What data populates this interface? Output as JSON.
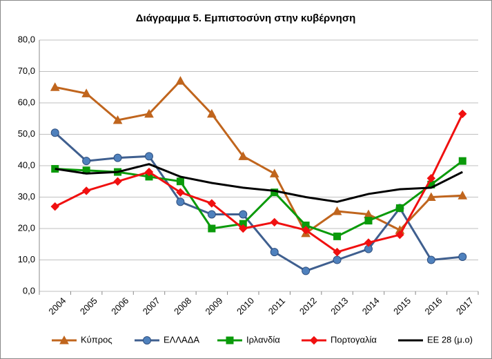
{
  "chart_data": {
    "type": "line",
    "title": "Διάγραμμα 5. Εμπιστοσύνη στην κυβέρνηση",
    "categories": [
      "2004",
      "2005",
      "2006",
      "2007",
      "2008",
      "2009",
      "2010",
      "2011",
      "2012",
      "2013",
      "2014",
      "2015",
      "2016",
      "2017"
    ],
    "series": [
      {
        "name": "Κύπρος",
        "color": "#c0651d",
        "marker": "triangle",
        "values": [
          65.0,
          63.0,
          54.5,
          56.5,
          67.0,
          56.5,
          43.0,
          37.5,
          18.5,
          25.5,
          24.5,
          19.5,
          30.0,
          30.5
        ]
      },
      {
        "name": "ΕΛΛΑΔΑ",
        "color": "#3f5f8f",
        "marker": "circle",
        "marker_color": "#4f81bd",
        "values": [
          50.5,
          41.5,
          42.5,
          43.0,
          28.5,
          24.5,
          24.5,
          12.5,
          6.5,
          10.0,
          13.5,
          26.5,
          10.0,
          11.0
        ]
      },
      {
        "name": "Ιρλανδία",
        "color": "#0a9a0a",
        "marker": "square",
        "values": [
          39.0,
          38.5,
          38.0,
          36.5,
          35.0,
          20.0,
          21.5,
          31.5,
          21.0,
          17.5,
          22.5,
          26.5,
          34.0,
          41.5
        ]
      },
      {
        "name": "Πορτογαλία",
        "color": "#f01010",
        "marker": "diamond",
        "values": [
          27.0,
          32.0,
          35.0,
          38.0,
          31.5,
          28.0,
          20.0,
          22.0,
          19.5,
          12.5,
          15.5,
          18.0,
          36.0,
          56.5
        ]
      },
      {
        "name": "ΕΕ 28 (μ.ο)",
        "color": "#000000",
        "marker": "none",
        "values": [
          39.0,
          37.5,
          38.0,
          40.5,
          36.5,
          34.5,
          33.0,
          32.0,
          30.0,
          28.5,
          31.0,
          32.5,
          33.0,
          38.0
        ]
      }
    ],
    "ylim": [
      0,
      80
    ],
    "yticks": [
      {
        "value": 0,
        "label": "0,0"
      },
      {
        "value": 10,
        "label": "10,0"
      },
      {
        "value": 20,
        "label": "20,0"
      },
      {
        "value": 30,
        "label": "30,0"
      },
      {
        "value": 40,
        "label": "40,0"
      },
      {
        "value": 50,
        "label": "50,0"
      },
      {
        "value": 60,
        "label": "60,0"
      },
      {
        "value": 70,
        "label": "70,0"
      },
      {
        "value": 80,
        "label": "80,0"
      }
    ],
    "grid": true,
    "legend": "bottom"
  }
}
